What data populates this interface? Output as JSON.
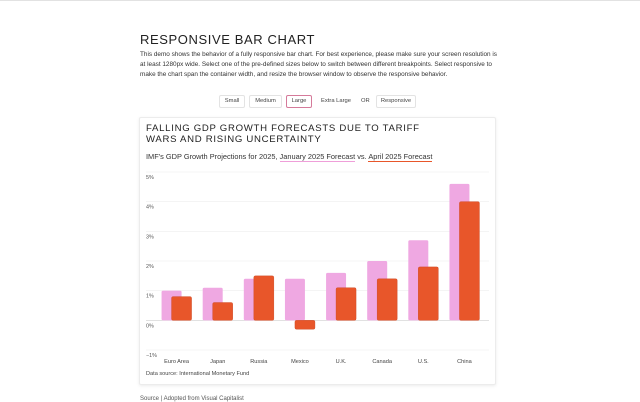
{
  "page": {
    "title": "RESPONSIVE BAR CHART",
    "intro": "This demo shows the behavior of a fully responsive bar chart. For best experience, please make sure your screen resolution is at least 1280px wide. Select one of the pre-defined sizes below to switch between different breakpoints. Select responsive to make the chart span the container width, and resize the browser window to observe the responsive behavior.",
    "footer": "Source | Adopted from Visual Capitalist"
  },
  "controls": {
    "small": "Small",
    "medium": "Medium",
    "large": "Large",
    "extra_large": "Extra Large",
    "or": "OR",
    "responsive": "Responsive",
    "selected": "Large"
  },
  "chart": {
    "title": "FALLING GDP GROWTH FORECASTS DUE TO TARIFF WARS AND RISING UNCERTAINTY",
    "subtitle_prefix": "IMF's GDP Growth Projections for 2025,",
    "subtitle_jan": "January 2025 Forecast",
    "subtitle_vs": "vs.",
    "subtitle_apr": "April 2025 Forecast",
    "source": "Data source: International Monetary Fund"
  },
  "chart_data": {
    "type": "bar",
    "title": "FALLING GDP GROWTH FORECASTS DUE TO TARIFF WARS AND RISING UNCERTAINTY",
    "subtitle": "IMF's GDP Growth Projections for 2025, January 2025 Forecast vs. April 2025 Forecast",
    "categories": [
      "Euro Area",
      "Japan",
      "Russia",
      "Mexico",
      "U.K.",
      "Canada",
      "U.S.",
      "China"
    ],
    "series": [
      {
        "name": "January 2025 Forecast",
        "color": "#efa8e2",
        "values": [
          1.0,
          1.1,
          1.4,
          1.4,
          1.6,
          2.0,
          2.7,
          4.6
        ]
      },
      {
        "name": "April 2025 Forecast",
        "color": "#e8562a",
        "values": [
          0.8,
          0.6,
          1.5,
          -0.3,
          1.1,
          1.4,
          1.8,
          4.0
        ]
      }
    ],
    "yticks": [
      "5%",
      "4%",
      "3%",
      "2%",
      "1%",
      "0%",
      "−1%"
    ],
    "ylim": [
      -1,
      5
    ],
    "grid": true
  }
}
